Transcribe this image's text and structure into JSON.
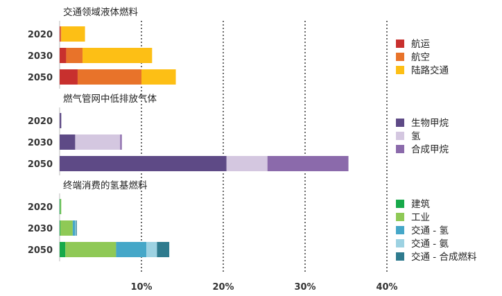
{
  "chart_data": [
    {
      "type": "bar",
      "orientation": "horizontal",
      "stacked": true,
      "title": "交通领域液体燃料",
      "categories": [
        "2020",
        "2030",
        "2050"
      ],
      "series": [
        {
          "name": "航运",
          "color": "#c8302e",
          "values": [
            0.1,
            0.8,
            2.2
          ]
        },
        {
          "name": "航空",
          "color": "#e8732a",
          "values": [
            0.1,
            2.0,
            7.8
          ]
        },
        {
          "name": "陆路交通",
          "color": "#fdbf15",
          "values": [
            2.9,
            8.5,
            4.2
          ]
        }
      ]
    },
    {
      "type": "bar",
      "orientation": "horizontal",
      "stacked": true,
      "title": "燃气管网中低排放气体",
      "categories": [
        "2020",
        "2030",
        "2050"
      ],
      "series": [
        {
          "name": "生物甲烷",
          "color": "#5e4a86",
          "values": [
            0.2,
            1.9,
            20.4
          ]
        },
        {
          "name": "氢",
          "color": "#d4c7e0",
          "values": [
            0,
            5.5,
            5.0
          ]
        },
        {
          "name": "合成甲烷",
          "color": "#8b6aab",
          "values": [
            0,
            0.2,
            9.9
          ]
        }
      ]
    },
    {
      "type": "bar",
      "orientation": "horizontal",
      "stacked": true,
      "title": "终端消费的氢基燃料",
      "categories": [
        "2020",
        "2030",
        "2050"
      ],
      "series": [
        {
          "name": "建筑",
          "color": "#17a94a",
          "values": [
            0.1,
            0.1,
            0.7
          ]
        },
        {
          "name": "工业",
          "color": "#8fc956",
          "values": [
            0.1,
            1.5,
            6.2
          ]
        },
        {
          "name": "交通 - 氢",
          "color": "#45a7c8",
          "values": [
            0,
            0.3,
            3.7
          ]
        },
        {
          "name": "交通 - 氨",
          "color": "#9dd2e2",
          "values": [
            0,
            0.1,
            1.3
          ]
        },
        {
          "name": "交通 - 合成燃料",
          "color": "#2f7b8e",
          "values": [
            0,
            0.1,
            1.5
          ]
        }
      ]
    }
  ],
  "x_axis": {
    "range": [
      0,
      40
    ],
    "unit": "%",
    "ticks": [
      10,
      20,
      30,
      40
    ],
    "tick_labels": [
      "10%",
      "20%",
      "30%",
      "40%"
    ],
    "gridlines": "dotted"
  }
}
